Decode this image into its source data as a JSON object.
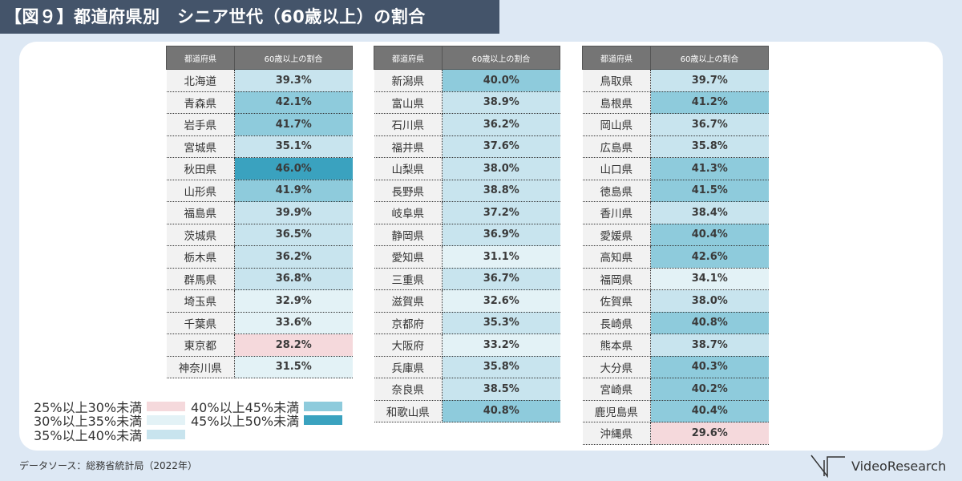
{
  "title": "【図９】都道府県別　シニア世代（60歳以上）の割合",
  "headers": {
    "pref": "都道府県",
    "value": "60歳以上の割合"
  },
  "colors": {
    "c25": "#f5d9dc",
    "c30": "#e3f2f6",
    "c35": "#c8e4ee",
    "c40": "#8ecbdc",
    "c45": "#3aa2bf"
  },
  "legend": [
    {
      "label": "25%以上30%未満",
      "key": "c25"
    },
    {
      "label": "30%以上35%未満",
      "key": "c30"
    },
    {
      "label": "35%以上40%未満",
      "key": "c35"
    },
    {
      "label": "40%以上45%未満",
      "key": "c40"
    },
    {
      "label": "45%以上50%未満",
      "key": "c45"
    }
  ],
  "source": "データソース：総務省統計局（2022年）",
  "logo": "VideoResearch",
  "chart_data": {
    "type": "table",
    "unit": "%",
    "columns": [
      [
        [
          "北海道",
          39.3
        ],
        [
          "青森県",
          42.1
        ],
        [
          "岩手県",
          41.7
        ],
        [
          "宮城県",
          35.1
        ],
        [
          "秋田県",
          46.0
        ],
        [
          "山形県",
          41.9
        ],
        [
          "福島県",
          39.9
        ],
        [
          "茨城県",
          36.5
        ],
        [
          "栃木県",
          36.2
        ],
        [
          "群馬県",
          36.8
        ],
        [
          "埼玉県",
          32.9
        ],
        [
          "千葉県",
          33.6
        ],
        [
          "東京都",
          28.2
        ],
        [
          "神奈川県",
          31.5
        ]
      ],
      [
        [
          "新潟県",
          40.0
        ],
        [
          "富山県",
          38.9
        ],
        [
          "石川県",
          36.2
        ],
        [
          "福井県",
          37.6
        ],
        [
          "山梨県",
          38.0
        ],
        [
          "長野県",
          38.8
        ],
        [
          "岐阜県",
          37.2
        ],
        [
          "静岡県",
          36.9
        ],
        [
          "愛知県",
          31.1
        ],
        [
          "三重県",
          36.7
        ],
        [
          "滋賀県",
          32.6
        ],
        [
          "京都府",
          35.3
        ],
        [
          "大阪府",
          33.2
        ],
        [
          "兵庫県",
          35.8
        ],
        [
          "奈良県",
          38.5
        ],
        [
          "和歌山県",
          40.8
        ]
      ],
      [
        [
          "鳥取県",
          39.7
        ],
        [
          "島根県",
          41.2
        ],
        [
          "岡山県",
          36.7
        ],
        [
          "広島県",
          35.8
        ],
        [
          "山口県",
          41.3
        ],
        [
          "徳島県",
          41.5
        ],
        [
          "香川県",
          38.4
        ],
        [
          "愛媛県",
          40.4
        ],
        [
          "高知県",
          42.6
        ],
        [
          "福岡県",
          34.1
        ],
        [
          "佐賀県",
          38.0
        ],
        [
          "長崎県",
          40.8
        ],
        [
          "熊本県",
          38.7
        ],
        [
          "大分県",
          40.3
        ],
        [
          "宮崎県",
          40.2
        ],
        [
          "鹿児島県",
          40.4
        ],
        [
          "沖縄県",
          29.6
        ]
      ]
    ]
  }
}
